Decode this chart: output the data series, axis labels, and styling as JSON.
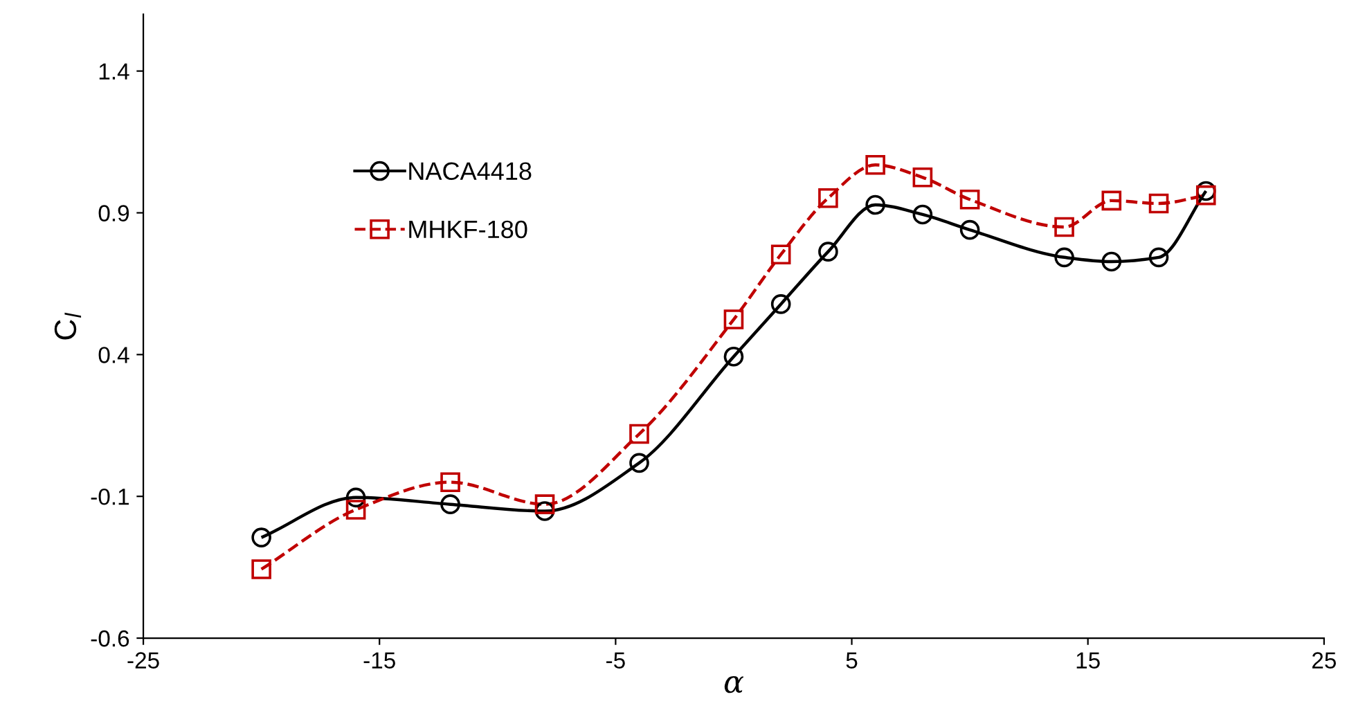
{
  "chart_data": {
    "type": "line",
    "xlabel": "α",
    "ylabel": "C$_{l}$",
    "x": [
      -20,
      -16,
      -12,
      -8,
      -4,
      0,
      2,
      4,
      6,
      8,
      10,
      14,
      16,
      18,
      20
    ],
    "series": [
      {
        "name": "NACA4418",
        "color": "#000000",
        "marker": "circle",
        "line_style": "solid",
        "values": [
          -0.245,
          -0.104,
          -0.128,
          -0.152,
          0.018,
          0.393,
          0.578,
          0.763,
          0.928,
          0.894,
          0.84,
          0.743,
          0.728,
          0.743,
          0.977
        ]
      },
      {
        "name": "MHKF-180",
        "color": "#c00000",
        "marker": "square",
        "line_style": "dashed",
        "values": [
          -0.357,
          -0.147,
          -0.05,
          -0.128,
          0.12,
          0.524,
          0.753,
          0.952,
          1.069,
          1.025,
          0.947,
          0.85,
          0.943,
          0.933,
          0.962
        ]
      }
    ],
    "xlim": [
      -25,
      25
    ],
    "xticks": [
      -25,
      -15,
      -5,
      5,
      15,
      25
    ],
    "ylim": [
      -0.6,
      1.6
    ],
    "yticks": [
      -0.6,
      -0.1,
      0.4,
      0.9,
      1.4
    ],
    "grid": false,
    "legend": "top left"
  }
}
